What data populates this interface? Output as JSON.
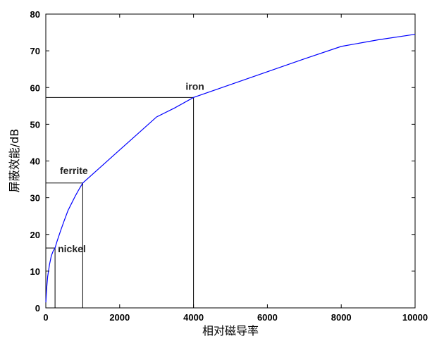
{
  "chart_data": {
    "type": "line",
    "title": "",
    "xlabel": "相对磁导率",
    "ylabel": "屏蔽效能/dB",
    "xlim": [
      0,
      10000
    ],
    "ylim": [
      0,
      80
    ],
    "xticks": [
      0,
      2000,
      4000,
      6000,
      8000,
      10000
    ],
    "yticks": [
      0,
      10,
      20,
      30,
      40,
      50,
      60,
      70,
      80
    ],
    "grid": false,
    "legend": "none",
    "series": [
      {
        "color": "#0000ff",
        "x": [
          1,
          20,
          50,
          100,
          150,
          200,
          250,
          300,
          400,
          500,
          600,
          700,
          800,
          900,
          1000,
          1500,
          2000,
          2500,
          3000,
          3500,
          4000,
          5000,
          6000,
          7000,
          8000,
          9000,
          10000
        ],
        "y": [
          1.5,
          5,
          8.5,
          11.8,
          14.2,
          15.5,
          16.3,
          18,
          21,
          23.8,
          26.5,
          28.5,
          30.5,
          32.3,
          34,
          38.5,
          43,
          47.5,
          52,
          54.5,
          57.3,
          60.8,
          64.3,
          67.8,
          71.2,
          73,
          74.5
        ]
      }
    ],
    "annotations": [
      {
        "text": "nickel",
        "x": 250,
        "y": 16.3
      },
      {
        "text": "ferrite",
        "x": 1000,
        "y": 34
      },
      {
        "text": "iron",
        "x": 4000,
        "y": 57.3
      }
    ]
  }
}
